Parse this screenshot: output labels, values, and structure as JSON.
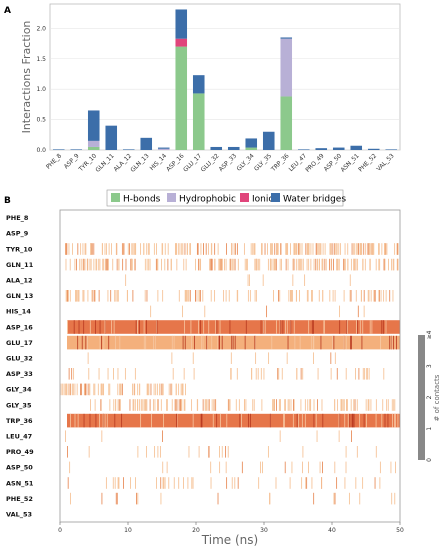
{
  "panel_a_label": "A",
  "panel_b_label": "B",
  "chart_data": [
    {
      "type": "bar",
      "stacked": true,
      "ylabel": "Interactions Fraction",
      "ylim": [
        0,
        2.4
      ],
      "yticks": [
        "0.0",
        "0.5",
        "1.0",
        "1.5",
        "2.0"
      ],
      "grid": true,
      "categories": [
        "PHE_8",
        "ASP_9",
        "TYR_10",
        "GLN_11",
        "ALA_12",
        "GLN_13",
        "HIS_14",
        "ASP_16",
        "GLU_17",
        "GLU_32",
        "ASP_33",
        "GLY_34",
        "GLY_35",
        "TRP_36",
        "LEU_47",
        "PRO_49",
        "ASP_50",
        "ASN_51",
        "PHE_52",
        "VAL_53"
      ],
      "series": [
        {
          "name": "H-bonds",
          "color": "#8cc98c",
          "values": [
            0,
            0,
            0.05,
            0,
            0,
            0,
            0,
            1.7,
            0.93,
            0,
            0,
            0.04,
            0,
            0.88,
            0,
            0,
            0,
            0,
            0,
            0
          ]
        },
        {
          "name": "Hydrophobic",
          "color": "#b8b0d6",
          "values": [
            0,
            0,
            0.1,
            0,
            0,
            0,
            0.02,
            0,
            0,
            0,
            0,
            0,
            0,
            0.95,
            0,
            0,
            0,
            0,
            0,
            0
          ]
        },
        {
          "name": "Ionic",
          "color": "#e0457b",
          "values": [
            0,
            0,
            0,
            0,
            0,
            0,
            0,
            0.13,
            0,
            0,
            0,
            0,
            0,
            0,
            0,
            0,
            0,
            0,
            0,
            0
          ]
        },
        {
          "name": "Water bridges",
          "color": "#3c6ea9",
          "values": [
            0.01,
            0.01,
            0.5,
            0.4,
            0.01,
            0.2,
            0.02,
            0.48,
            0.3,
            0.05,
            0.05,
            0.15,
            0.3,
            0.02,
            0.01,
            0.03,
            0.04,
            0.07,
            0.02,
            0.01
          ]
        }
      ]
    },
    {
      "type": "heatmap",
      "xlabel": "Time (ns)",
      "xlim": [
        0,
        50
      ],
      "xticks": [
        "0",
        "10",
        "20",
        "30",
        "40",
        "50"
      ],
      "rows": [
        "PHE_8",
        "ASP_9",
        "TYR_10",
        "GLN_11",
        "ALA_12",
        "GLN_13",
        "HIS_14",
        "ASP_16",
        "GLU_17",
        "GLU_32",
        "ASP_33",
        "GLY_34",
        "GLY_35",
        "TRP_36",
        "LEU_47",
        "PRO_49",
        "ASP_50",
        "ASN_51",
        "PHE_52",
        "VAL_53"
      ],
      "row_density": [
        0,
        0,
        0.55,
        0.5,
        0.02,
        0.3,
        0.02,
        1,
        1,
        0.03,
        0.12,
        0.2,
        0.35,
        1,
        0.02,
        0.06,
        0.06,
        0.12,
        0.05,
        0
      ],
      "colorbar_label": "# of contacts",
      "colorbar_ticks": [
        "0",
        "1",
        "2",
        "3",
        "≥4"
      ]
    }
  ],
  "legend": {
    "items": [
      {
        "name": "H-bonds",
        "color": "#8cc98c"
      },
      {
        "name": "Hydrophobic",
        "color": "#b8b0d6"
      },
      {
        "name": "Ionic",
        "color": "#e0457b"
      },
      {
        "name": "Water bridges",
        "color": "#3c6ea9"
      }
    ]
  }
}
